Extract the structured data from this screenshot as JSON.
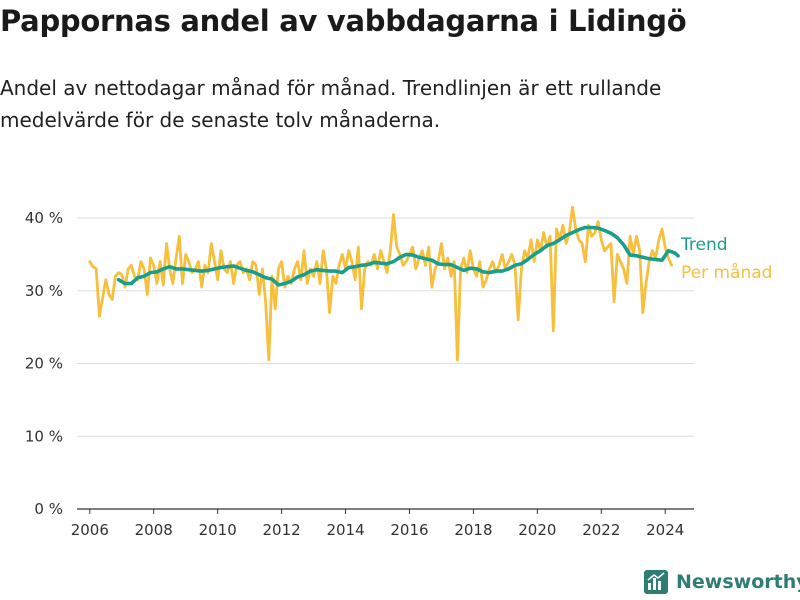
{
  "title": "Pappornas andel av vabbdagarna i Lidingö",
  "subtitle": "Andel av nettodagar månad för månad. Trendlinjen är ett rullande medelvärde för de senaste tolv månaderna.",
  "brand": {
    "name": "Newsworthy",
    "color": "#2e7d73"
  },
  "chart_data": {
    "type": "line",
    "title": "",
    "xlabel": "",
    "ylabel": "",
    "xlim": [
      2005.6,
      2024.9
    ],
    "ylim": [
      0,
      40
    ],
    "y_ticks": [
      0,
      10,
      20,
      30,
      40
    ],
    "y_tick_labels": [
      "0 %",
      "10 %",
      "20 %",
      "30 %",
      "40 %"
    ],
    "x_ticks": [
      2006,
      2008,
      2010,
      2012,
      2014,
      2016,
      2018,
      2020,
      2022,
      2024
    ],
    "x_tick_labels": [
      "2006",
      "2008",
      "2010",
      "2012",
      "2014",
      "2016",
      "2018",
      "2020",
      "2022",
      "2024"
    ],
    "grid": true,
    "legend_position": "right, at line ends",
    "series": [
      {
        "name": "Per månad",
        "color": "#f7bf3c",
        "points": [
          [
            2006.0,
            34.0
          ],
          [
            2006.1,
            33.3
          ],
          [
            2006.2,
            33.0
          ],
          [
            2006.3,
            26.5
          ],
          [
            2006.4,
            29.0
          ],
          [
            2006.5,
            31.5
          ],
          [
            2006.6,
            29.5
          ],
          [
            2006.7,
            28.8
          ],
          [
            2006.8,
            32.0
          ],
          [
            2006.9,
            32.5
          ],
          [
            2007.0,
            32.2
          ],
          [
            2007.1,
            30.5
          ],
          [
            2007.2,
            33.0
          ],
          [
            2007.3,
            33.5
          ],
          [
            2007.4,
            32.0
          ],
          [
            2007.5,
            31.5
          ],
          [
            2007.6,
            34.0
          ],
          [
            2007.7,
            33.0
          ],
          [
            2007.8,
            29.5
          ],
          [
            2007.9,
            34.5
          ],
          [
            2008.0,
            33.5
          ],
          [
            2008.1,
            31.0
          ],
          [
            2008.2,
            34.0
          ],
          [
            2008.3,
            30.8
          ],
          [
            2008.4,
            36.5
          ],
          [
            2008.5,
            33.0
          ],
          [
            2008.6,
            31.0
          ],
          [
            2008.7,
            34.5
          ],
          [
            2008.8,
            37.5
          ],
          [
            2008.9,
            31.0
          ],
          [
            2009.0,
            35.0
          ],
          [
            2009.1,
            34.0
          ],
          [
            2009.2,
            32.5
          ],
          [
            2009.3,
            33.0
          ],
          [
            2009.4,
            34.0
          ],
          [
            2009.5,
            30.5
          ],
          [
            2009.6,
            33.5
          ],
          [
            2009.7,
            32.5
          ],
          [
            2009.8,
            36.5
          ],
          [
            2009.9,
            34.0
          ],
          [
            2010.0,
            31.5
          ],
          [
            2010.1,
            35.5
          ],
          [
            2010.2,
            33.0
          ],
          [
            2010.3,
            32.5
          ],
          [
            2010.4,
            34.0
          ],
          [
            2010.5,
            31.0
          ],
          [
            2010.6,
            33.5
          ],
          [
            2010.7,
            34.0
          ],
          [
            2010.8,
            32.5
          ],
          [
            2010.9,
            33.0
          ],
          [
            2011.0,
            31.5
          ],
          [
            2011.1,
            34.0
          ],
          [
            2011.2,
            33.5
          ],
          [
            2011.3,
            29.5
          ],
          [
            2011.4,
            33.0
          ],
          [
            2011.5,
            28.5
          ],
          [
            2011.6,
            20.5
          ],
          [
            2011.7,
            32.0
          ],
          [
            2011.8,
            27.5
          ],
          [
            2011.9,
            33.0
          ],
          [
            2012.0,
            34.0
          ],
          [
            2012.1,
            30.5
          ],
          [
            2012.2,
            32.0
          ],
          [
            2012.3,
            31.0
          ],
          [
            2012.4,
            33.0
          ],
          [
            2012.5,
            34.0
          ],
          [
            2012.6,
            31.5
          ],
          [
            2012.7,
            35.5
          ],
          [
            2012.8,
            31.0
          ],
          [
            2012.9,
            33.0
          ],
          [
            2013.0,
            32.0
          ],
          [
            2013.1,
            34.0
          ],
          [
            2013.2,
            31.0
          ],
          [
            2013.3,
            35.5
          ],
          [
            2013.4,
            33.0
          ],
          [
            2013.5,
            27.0
          ],
          [
            2013.6,
            32.0
          ],
          [
            2013.7,
            31.0
          ],
          [
            2013.8,
            33.5
          ],
          [
            2013.9,
            35.0
          ],
          [
            2014.0,
            33.0
          ],
          [
            2014.1,
            35.5
          ],
          [
            2014.2,
            34.0
          ],
          [
            2014.3,
            31.5
          ],
          [
            2014.4,
            36.0
          ],
          [
            2014.5,
            27.5
          ],
          [
            2014.6,
            33.0
          ],
          [
            2014.7,
            34.0
          ],
          [
            2014.8,
            33.5
          ],
          [
            2014.9,
            35.0
          ],
          [
            2015.0,
            33.0
          ],
          [
            2015.1,
            35.5
          ],
          [
            2015.2,
            34.0
          ],
          [
            2015.3,
            32.5
          ],
          [
            2015.4,
            35.5
          ],
          [
            2015.5,
            40.5
          ],
          [
            2015.6,
            36.0
          ],
          [
            2015.7,
            35.0
          ],
          [
            2015.8,
            33.5
          ],
          [
            2015.9,
            34.0
          ],
          [
            2016.0,
            35.0
          ],
          [
            2016.1,
            36.0
          ],
          [
            2016.2,
            33.0
          ],
          [
            2016.3,
            34.5
          ],
          [
            2016.4,
            35.5
          ],
          [
            2016.5,
            33.5
          ],
          [
            2016.6,
            36.0
          ],
          [
            2016.7,
            30.5
          ],
          [
            2016.8,
            33.0
          ],
          [
            2016.9,
            34.0
          ],
          [
            2017.0,
            36.5
          ],
          [
            2017.1,
            33.0
          ],
          [
            2017.2,
            34.5
          ],
          [
            2017.3,
            32.0
          ],
          [
            2017.4,
            34.0
          ],
          [
            2017.5,
            20.5
          ],
          [
            2017.6,
            33.0
          ],
          [
            2017.7,
            34.5
          ],
          [
            2017.8,
            32.5
          ],
          [
            2017.9,
            35.5
          ],
          [
            2018.0,
            33.0
          ],
          [
            2018.1,
            32.0
          ],
          [
            2018.2,
            34.0
          ],
          [
            2018.3,
            30.5
          ],
          [
            2018.4,
            31.5
          ],
          [
            2018.5,
            33.0
          ],
          [
            2018.6,
            34.0
          ],
          [
            2018.7,
            32.5
          ],
          [
            2018.8,
            33.5
          ],
          [
            2018.9,
            35.0
          ],
          [
            2019.0,
            33.0
          ],
          [
            2019.1,
            34.0
          ],
          [
            2019.2,
            35.0
          ],
          [
            2019.3,
            33.5
          ],
          [
            2019.4,
            26.0
          ],
          [
            2019.5,
            33.0
          ],
          [
            2019.6,
            35.5
          ],
          [
            2019.7,
            34.5
          ],
          [
            2019.8,
            37.0
          ],
          [
            2019.9,
            34.0
          ],
          [
            2020.0,
            37.0
          ],
          [
            2020.1,
            35.5
          ],
          [
            2020.2,
            38.0
          ],
          [
            2020.3,
            36.0
          ],
          [
            2020.4,
            37.5
          ],
          [
            2020.5,
            24.5
          ],
          [
            2020.6,
            38.5
          ],
          [
            2020.7,
            37.0
          ],
          [
            2020.8,
            39.0
          ],
          [
            2020.9,
            36.5
          ],
          [
            2021.0,
            38.0
          ],
          [
            2021.1,
            41.5
          ],
          [
            2021.2,
            38.5
          ],
          [
            2021.3,
            37.0
          ],
          [
            2021.4,
            36.5
          ],
          [
            2021.5,
            34.0
          ],
          [
            2021.6,
            39.0
          ],
          [
            2021.7,
            37.5
          ],
          [
            2021.8,
            38.0
          ],
          [
            2021.9,
            39.5
          ],
          [
            2022.0,
            37.0
          ],
          [
            2022.1,
            35.5
          ],
          [
            2022.2,
            36.0
          ],
          [
            2022.3,
            36.5
          ],
          [
            2022.4,
            28.5
          ],
          [
            2022.5,
            35.0
          ],
          [
            2022.6,
            34.0
          ],
          [
            2022.7,
            33.0
          ],
          [
            2022.8,
            31.0
          ],
          [
            2022.9,
            37.5
          ],
          [
            2023.0,
            35.0
          ],
          [
            2023.1,
            37.5
          ],
          [
            2023.2,
            35.5
          ],
          [
            2023.3,
            27.0
          ],
          [
            2023.4,
            31.0
          ],
          [
            2023.5,
            34.0
          ],
          [
            2023.6,
            35.5
          ],
          [
            2023.7,
            34.5
          ],
          [
            2023.8,
            37.0
          ],
          [
            2023.9,
            38.5
          ],
          [
            2024.0,
            36.0
          ],
          [
            2024.1,
            34.5
          ],
          [
            2024.2,
            33.5
          ]
        ]
      },
      {
        "name": "Trend",
        "color": "#1a9e8c",
        "points": [
          [
            2006.9,
            31.5
          ],
          [
            2007.1,
            31.0
          ],
          [
            2007.3,
            31.0
          ],
          [
            2007.5,
            31.8
          ],
          [
            2007.7,
            32.0
          ],
          [
            2007.9,
            32.5
          ],
          [
            2008.1,
            32.6
          ],
          [
            2008.3,
            33.0
          ],
          [
            2008.5,
            33.3
          ],
          [
            2008.7,
            33.0
          ],
          [
            2008.9,
            33.0
          ],
          [
            2009.1,
            32.9
          ],
          [
            2009.3,
            32.8
          ],
          [
            2009.5,
            32.7
          ],
          [
            2009.7,
            32.8
          ],
          [
            2009.9,
            33.0
          ],
          [
            2010.1,
            33.2
          ],
          [
            2010.3,
            33.3
          ],
          [
            2010.5,
            33.4
          ],
          [
            2010.7,
            33.1
          ],
          [
            2010.9,
            32.8
          ],
          [
            2011.1,
            32.6
          ],
          [
            2011.3,
            32.2
          ],
          [
            2011.5,
            31.8
          ],
          [
            2011.7,
            31.6
          ],
          [
            2011.9,
            30.8
          ],
          [
            2012.1,
            31.0
          ],
          [
            2012.3,
            31.3
          ],
          [
            2012.5,
            31.9
          ],
          [
            2012.7,
            32.2
          ],
          [
            2012.9,
            32.7
          ],
          [
            2013.1,
            32.9
          ],
          [
            2013.3,
            32.8
          ],
          [
            2013.5,
            32.7
          ],
          [
            2013.7,
            32.7
          ],
          [
            2013.9,
            32.5
          ],
          [
            2014.1,
            33.2
          ],
          [
            2014.3,
            33.3
          ],
          [
            2014.5,
            33.5
          ],
          [
            2014.7,
            33.6
          ],
          [
            2014.9,
            33.9
          ],
          [
            2015.1,
            33.8
          ],
          [
            2015.3,
            33.7
          ],
          [
            2015.5,
            34.0
          ],
          [
            2015.7,
            34.6
          ],
          [
            2015.9,
            35.0
          ],
          [
            2016.1,
            34.9
          ],
          [
            2016.3,
            34.6
          ],
          [
            2016.5,
            34.4
          ],
          [
            2016.7,
            34.2
          ],
          [
            2016.9,
            33.7
          ],
          [
            2017.1,
            33.6
          ],
          [
            2017.3,
            33.6
          ],
          [
            2017.5,
            33.2
          ],
          [
            2017.7,
            32.8
          ],
          [
            2017.9,
            33.1
          ],
          [
            2018.1,
            33.0
          ],
          [
            2018.3,
            32.6
          ],
          [
            2018.5,
            32.5
          ],
          [
            2018.7,
            32.7
          ],
          [
            2018.9,
            32.7
          ],
          [
            2019.1,
            33.0
          ],
          [
            2019.3,
            33.5
          ],
          [
            2019.5,
            33.7
          ],
          [
            2019.7,
            34.3
          ],
          [
            2019.9,
            35.0
          ],
          [
            2020.1,
            35.5
          ],
          [
            2020.3,
            36.2
          ],
          [
            2020.5,
            36.5
          ],
          [
            2020.7,
            37.0
          ],
          [
            2020.9,
            37.6
          ],
          [
            2021.1,
            38.0
          ],
          [
            2021.3,
            38.4
          ],
          [
            2021.5,
            38.7
          ],
          [
            2021.7,
            38.7
          ],
          [
            2021.9,
            38.6
          ],
          [
            2022.1,
            38.3
          ],
          [
            2022.3,
            37.9
          ],
          [
            2022.5,
            37.3
          ],
          [
            2022.7,
            36.3
          ],
          [
            2022.9,
            34.9
          ],
          [
            2023.1,
            34.8
          ],
          [
            2023.3,
            34.6
          ],
          [
            2023.5,
            34.4
          ],
          [
            2023.7,
            34.3
          ],
          [
            2023.9,
            34.2
          ],
          [
            2024.1,
            35.5
          ],
          [
            2024.3,
            35.2
          ],
          [
            2024.4,
            34.8
          ]
        ]
      }
    ]
  }
}
